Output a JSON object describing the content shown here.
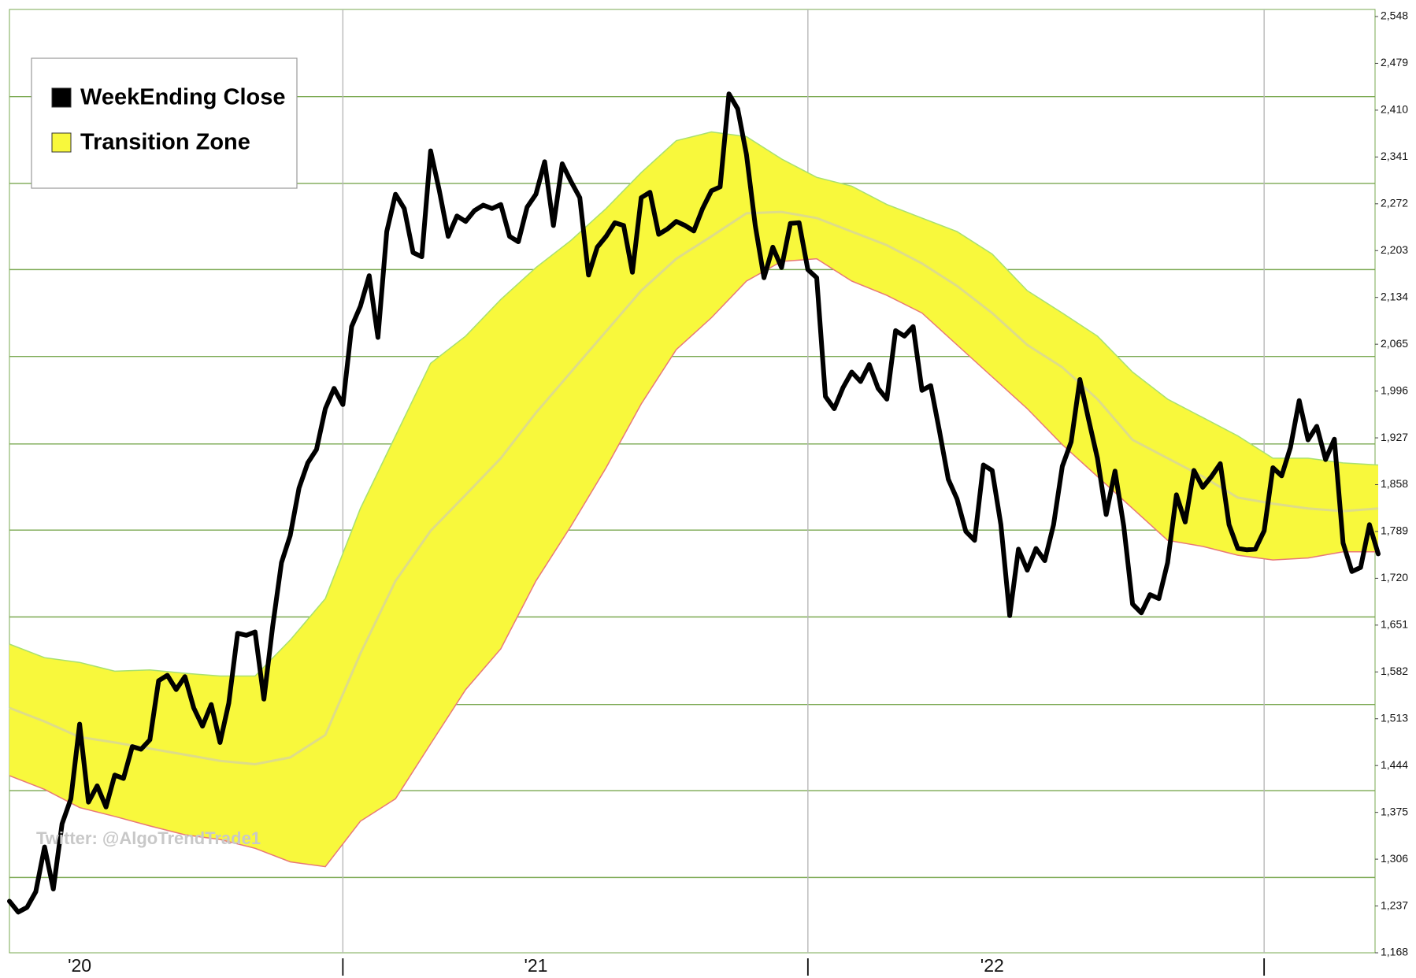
{
  "chart_data": {
    "type": "line",
    "annotation": "Twitter: @AlgoTrendTrade1",
    "xlim": [
      0,
      156
    ],
    "xticks": [
      {
        "value": 8,
        "label": "'20"
      },
      {
        "value": 38,
        "label": "|"
      },
      {
        "value": 60,
        "label": "'21"
      },
      {
        "value": 91,
        "label": "|"
      },
      {
        "value": 112,
        "label": "'22"
      },
      {
        "value": 143,
        "label": "|"
      }
    ],
    "vgrid": [
      38,
      91,
      143
    ],
    "ylim": [
      1168,
      2548
    ],
    "yticks": [
      {
        "value": 1168,
        "label": "1,168"
      },
      {
        "value": 1237,
        "label": "1,237"
      },
      {
        "value": 1306,
        "label": "1,306"
      },
      {
        "value": 1375,
        "label": "1,375"
      },
      {
        "value": 1444,
        "label": "1,444"
      },
      {
        "value": 1513,
        "label": "1,513"
      },
      {
        "value": 1582,
        "label": "1,582"
      },
      {
        "value": 1651,
        "label": "1,651"
      },
      {
        "value": 1720,
        "label": "1,720"
      },
      {
        "value": 1789,
        "label": "1,789"
      },
      {
        "value": 1858,
        "label": "1,858"
      },
      {
        "value": 1927,
        "label": "1,927"
      },
      {
        "value": 1996,
        "label": "1,996"
      },
      {
        "value": 2065,
        "label": "2,065"
      },
      {
        "value": 2134,
        "label": "2,134"
      },
      {
        "value": 2203,
        "label": "2,203"
      },
      {
        "value": 2272,
        "label": "2,272"
      },
      {
        "value": 2341,
        "label": "2,341"
      },
      {
        "value": 2410,
        "label": "2,410"
      },
      {
        "value": 2479,
        "label": "2,479"
      },
      {
        "value": 2548,
        "label": "2,548"
      }
    ],
    "ygrid": [
      1279,
      1407,
      1534,
      1663,
      1791,
      1918,
      2047,
      2175,
      2302,
      2430
    ],
    "grid_color": "#7aa850",
    "vgrid_color": "#b8b8b8",
    "legend": "upper-left",
    "series": [
      {
        "name": "WeekEnding Close",
        "color": "#000000",
        "x": [
          0,
          1,
          2,
          3,
          4,
          5,
          6,
          7,
          8,
          9,
          10,
          11,
          12,
          13,
          14,
          15,
          16,
          17,
          18,
          19,
          20,
          21,
          22,
          23,
          24,
          25,
          26,
          27,
          28,
          29,
          30,
          31,
          32,
          33,
          34,
          35,
          36,
          37,
          38,
          39,
          40,
          41,
          42,
          43,
          44,
          45,
          46,
          47,
          48,
          49,
          50,
          51,
          52,
          53,
          54,
          55,
          56,
          57,
          58,
          59,
          60,
          61,
          62,
          63,
          64,
          65,
          66,
          67,
          68,
          69,
          70,
          71,
          72,
          73,
          74,
          75,
          76,
          77,
          78,
          79,
          80,
          81,
          82,
          83,
          84,
          85,
          86,
          87,
          88,
          89,
          90,
          91,
          92,
          93,
          94,
          95,
          96,
          97,
          98,
          99,
          100,
          101,
          102,
          103,
          104,
          105,
          106,
          107,
          108,
          109,
          110,
          111,
          112,
          113,
          114,
          115,
          116,
          117,
          118,
          119,
          120,
          121,
          122,
          123,
          124,
          125,
          126,
          127,
          128,
          129,
          130,
          131,
          132,
          133,
          134,
          135,
          136,
          137,
          138,
          139,
          140,
          141,
          142,
          143,
          144,
          145,
          146,
          147,
          148,
          149,
          150,
          151,
          152,
          153,
          154,
          155,
          156
        ],
        "values": [
          1244,
          1228,
          1235,
          1258,
          1324,
          1262,
          1358,
          1395,
          1505,
          1390,
          1414,
          1383,
          1430,
          1425,
          1472,
          1468,
          1482,
          1569,
          1577,
          1556,
          1575,
          1529,
          1502,
          1534,
          1478,
          1536,
          1639,
          1636,
          1641,
          1542,
          1649,
          1743,
          1783,
          1853,
          1890,
          1910,
          1970,
          2000,
          1976,
          2091,
          2121,
          2166,
          2075,
          2231,
          2286,
          2265,
          2200,
          2194,
          2350,
          2291,
          2224,
          2254,
          2246,
          2262,
          2270,
          2265,
          2271,
          2224,
          2216,
          2267,
          2286,
          2334,
          2240,
          2331,
          2305,
          2281,
          2167,
          2208,
          2224,
          2244,
          2240,
          2171,
          2281,
          2289,
          2227,
          2235,
          2246,
          2240,
          2232,
          2265,
          2291,
          2297,
          2434,
          2412,
          2345,
          2240,
          2163,
          2208,
          2178,
          2243,
          2244,
          2175,
          2163,
          1988,
          1970,
          2001,
          2024,
          2010,
          2035,
          2000,
          1984,
          2085,
          2077,
          2091,
          1997,
          2004,
          1937,
          1866,
          1837,
          1789,
          1776,
          1887,
          1879,
          1799,
          1665,
          1763,
          1732,
          1764,
          1746,
          1799,
          1885,
          1921,
          2013,
          1954,
          1897,
          1814,
          1878,
          1797,
          1682,
          1669,
          1696,
          1690,
          1743,
          1843,
          1803,
          1879,
          1854,
          1870,
          1889,
          1799,
          1764,
          1762,
          1763,
          1790,
          1883,
          1871,
          1913,
          1982,
          1924,
          1944,
          1895,
          1925,
          1772,
          1730,
          1736,
          1799,
          1756
        ]
      },
      {
        "name": "Transition Zone",
        "color": "#f8f83c",
        "upper_color": "#a8e070",
        "lower_color": "#e87878",
        "mid_color": "#dedc88",
        "x": [
          0,
          4,
          8,
          12,
          16,
          20,
          24,
          28,
          32,
          36,
          40,
          44,
          48,
          52,
          56,
          60,
          64,
          68,
          72,
          76,
          80,
          84,
          88,
          92,
          96,
          100,
          104,
          108,
          112,
          116,
          120,
          124,
          128,
          132,
          136,
          140,
          144,
          148,
          152,
          156
        ],
        "upper": [
          1623,
          1603,
          1596,
          1583,
          1585,
          1580,
          1576,
          1576,
          1629,
          1690,
          1823,
          1930,
          2037,
          2077,
          2131,
          2178,
          2218,
          2265,
          2318,
          2365,
          2378,
          2371,
          2338,
          2311,
          2298,
          2271,
          2251,
          2231,
          2198,
          2144,
          2111,
          2077,
          2024,
          1984,
          1957,
          1930,
          1897,
          1897,
          1890,
          1887
        ],
        "mid": [
          1529,
          1509,
          1486,
          1478,
          1469,
          1460,
          1451,
          1446,
          1456,
          1489,
          1609,
          1716,
          1790,
          1843,
          1897,
          1964,
          2024,
          2084,
          2144,
          2191,
          2224,
          2258,
          2260,
          2251,
          2231,
          2211,
          2184,
          2151,
          2111,
          2064,
          2031,
          1984,
          1924,
          1897,
          1870,
          1839,
          1830,
          1823,
          1819,
          1823
        ],
        "lower": [
          1429,
          1409,
          1382,
          1369,
          1355,
          1342,
          1335,
          1322,
          1302,
          1295,
          1362,
          1395,
          1476,
          1556,
          1616,
          1716,
          1797,
          1883,
          1977,
          2057,
          2104,
          2158,
          2187,
          2191,
          2158,
          2137,
          2111,
          2064,
          2017,
          1970,
          1917,
          1870,
          1823,
          1776,
          1767,
          1754,
          1747,
          1750,
          1759,
          1759
        ]
      }
    ]
  }
}
